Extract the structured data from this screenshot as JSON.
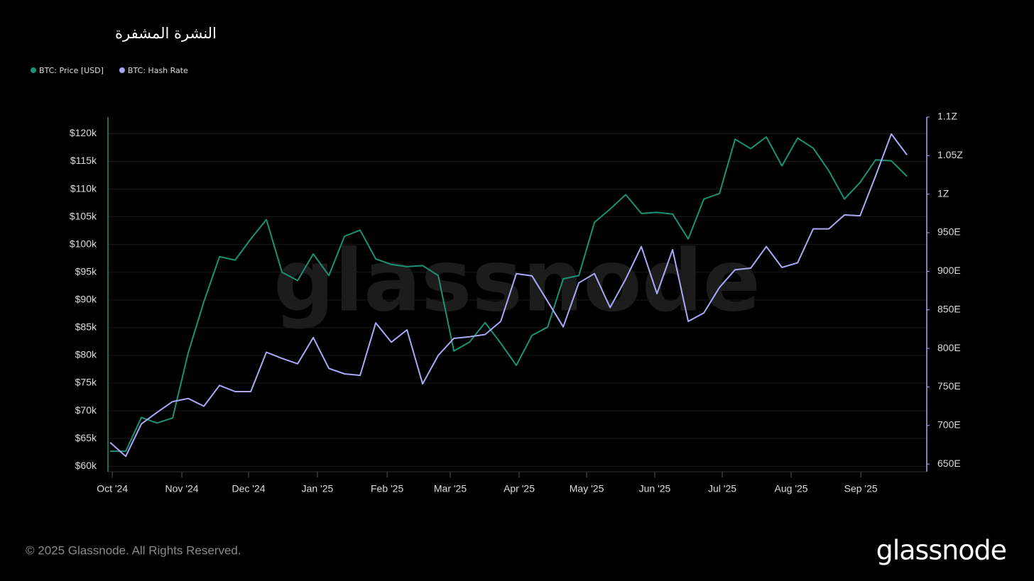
{
  "chart_data": {
    "type": "line",
    "title": "النشرة المشفرة",
    "watermark": "glassnode",
    "categories": [
      null,
      null,
      null,
      null,
      null,
      null,
      null,
      null,
      null,
      null,
      null,
      null,
      null,
      null,
      null,
      null,
      null,
      null,
      null,
      null,
      null,
      null,
      null,
      null,
      null,
      null,
      null,
      null,
      null,
      null,
      null,
      null,
      null,
      null,
      null,
      null,
      null,
      null,
      null,
      null,
      null,
      null,
      null,
      null,
      null,
      null,
      null,
      null,
      null,
      null,
      null,
      null
    ],
    "xlim": [
      -0.14,
      52.27
    ],
    "xticks": [
      {
        "value": 0.14,
        "label": "Oct '24"
      },
      {
        "value": 4.59,
        "label": "Nov '24"
      },
      {
        "value": 8.86,
        "label": "Dec '24"
      },
      {
        "value": 13.27,
        "label": "Jan '25"
      },
      {
        "value": 17.73,
        "label": "Feb '25"
      },
      {
        "value": 21.77,
        "label": "Mar '25"
      },
      {
        "value": 26.18,
        "label": "Apr '25"
      },
      {
        "value": 30.5,
        "label": "May '25"
      },
      {
        "value": 34.86,
        "label": "Jun '25"
      },
      {
        "value": 39.18,
        "label": "Jul '25"
      },
      {
        "value": 43.59,
        "label": "Aug '25"
      },
      {
        "value": 48.05,
        "label": "Sep '25"
      }
    ],
    "ylim": [
      59000,
      123000
    ],
    "yticks": [
      {
        "value": 60000,
        "label": "$60k"
      },
      {
        "value": 65000,
        "label": "$65k"
      },
      {
        "value": 70000,
        "label": "$70k"
      },
      {
        "value": 75000,
        "label": "$75k"
      },
      {
        "value": 80000,
        "label": "$80k"
      },
      {
        "value": 85000,
        "label": "$85k"
      },
      {
        "value": 90000,
        "label": "$90k"
      },
      {
        "value": 95000,
        "label": "$95k"
      },
      {
        "value": 100000,
        "label": "$100k"
      },
      {
        "value": 105000,
        "label": "$105k"
      },
      {
        "value": 110000,
        "label": "$110k"
      },
      {
        "value": 115000,
        "label": "$115k"
      },
      {
        "value": 120000,
        "label": "$120k"
      }
    ],
    "y2lim": [
      640,
      1100
    ],
    "y2ticks": [
      {
        "value": 650,
        "label": "650E"
      },
      {
        "value": 700,
        "label": "700E"
      },
      {
        "value": 750,
        "label": "750E"
      },
      {
        "value": 800,
        "label": "800E"
      },
      {
        "value": 850,
        "label": "850E"
      },
      {
        "value": 900,
        "label": "900E"
      },
      {
        "value": 950,
        "label": "950E"
      },
      {
        "value": 1000,
        "label": "1Z"
      },
      {
        "value": 1050,
        "label": "1.05Z"
      },
      {
        "value": 1100,
        "label": "1.1Z"
      }
    ],
    "grid": true,
    "series": [
      {
        "name": "BTC: Price [USD]",
        "color": "#1b9275",
        "axis": "y",
        "values": [
          62700,
          62700,
          68800,
          67800,
          68700,
          80500,
          89700,
          97800,
          97200,
          101000,
          104500,
          95000,
          93500,
          98300,
          94400,
          101500,
          102600,
          97400,
          96400,
          96000,
          96200,
          94400,
          80800,
          82400,
          85900,
          82200,
          78200,
          83600,
          85100,
          93800,
          94400,
          104000,
          106400,
          109000,
          105600,
          105800,
          105500,
          101000,
          108200,
          109200,
          119000,
          117300,
          119400,
          114200,
          119200,
          117400,
          113300,
          108200,
          111200,
          115300,
          115100,
          112300
        ]
      },
      {
        "name": "BTC: Hash Rate",
        "color": "#aaa9f7",
        "axis": "y2",
        "values": [
          678,
          660,
          702,
          717,
          731,
          735,
          725,
          752,
          744,
          744,
          795,
          787,
          780,
          814,
          774,
          767,
          765,
          833,
          808,
          824,
          754,
          791,
          813,
          815,
          818,
          835,
          897,
          894,
          861,
          828,
          885,
          897,
          853,
          890,
          932,
          871,
          928,
          835,
          846,
          879,
          902,
          904,
          932,
          905,
          911,
          955,
          955,
          973,
          972,
          1024,
          1078,
          1051
        ]
      }
    ]
  },
  "footer": "© 2025 Glassnode. All Rights Reserved.",
  "logo": "glassnode"
}
